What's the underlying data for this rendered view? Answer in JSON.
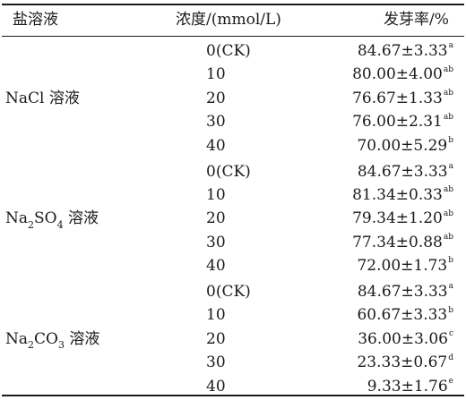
{
  "table": {
    "headers": {
      "salt": "盐溶液",
      "concentration": "浓度/(mmol/L)",
      "rate": "发芽率/%"
    },
    "groups": [
      {
        "salt_parts": [
          {
            "t": "NaCl 溶液",
            "sub": ""
          }
        ],
        "rows": [
          {
            "conc": "0(CK)",
            "value": "84.67±3.33",
            "sig": "a"
          },
          {
            "conc": "10",
            "value": "80.00±4.00",
            "sig": "ab"
          },
          {
            "conc": "20",
            "value": "76.67±1.33",
            "sig": "ab"
          },
          {
            "conc": "30",
            "value": "76.00±2.31",
            "sig": "ab"
          },
          {
            "conc": "40",
            "value": "70.00±5.29",
            "sig": "b"
          }
        ]
      },
      {
        "salt_parts": [
          {
            "t": "Na",
            "sub": "2"
          },
          {
            "t": "SO",
            "sub": "4"
          },
          {
            "t": " 溶液",
            "sub": ""
          }
        ],
        "rows": [
          {
            "conc": "0(CK)",
            "value": "84.67±3.33",
            "sig": "a"
          },
          {
            "conc": "10",
            "value": "81.34±0.33",
            "sig": "ab"
          },
          {
            "conc": "20",
            "value": "79.34±1.20",
            "sig": "ab"
          },
          {
            "conc": "30",
            "value": "77.34±0.88",
            "sig": "ab"
          },
          {
            "conc": "40",
            "value": "72.00±1.73",
            "sig": "b"
          }
        ]
      },
      {
        "salt_parts": [
          {
            "t": "Na",
            "sub": "2"
          },
          {
            "t": "CO",
            "sub": "3"
          },
          {
            "t": " 溶液",
            "sub": ""
          }
        ],
        "rows": [
          {
            "conc": "0(CK)",
            "value": "84.67±3.33",
            "sig": "a"
          },
          {
            "conc": "10",
            "value": "60.67±3.33",
            "sig": "b"
          },
          {
            "conc": "20",
            "value": "36.00±3.06",
            "sig": "c"
          },
          {
            "conc": "30",
            "value": "23.33±0.67",
            "sig": "d"
          },
          {
            "conc": "40",
            "value": "9.33±1.76",
            "sig": "e"
          }
        ]
      }
    ]
  }
}
